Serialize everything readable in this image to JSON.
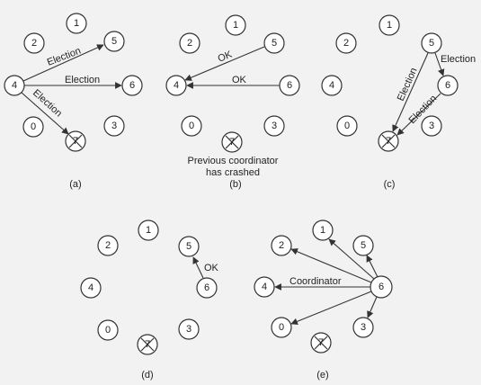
{
  "colors": {
    "background": "#f2f2f2",
    "node_fill": "#ffffff",
    "stroke": "#333333",
    "text": "#222222"
  },
  "figure": {
    "panels": [
      {
        "id": "a",
        "caption": "(a)",
        "nodes": [
          "1",
          "2",
          "5",
          "4",
          "6",
          "0",
          "3",
          "7"
        ],
        "crashed": [
          "7"
        ],
        "edges": [
          {
            "from": "4",
            "to": "5",
            "label": "Election"
          },
          {
            "from": "4",
            "to": "6",
            "label": "Election"
          },
          {
            "from": "4",
            "to": "7",
            "label": "Election"
          }
        ]
      },
      {
        "id": "b",
        "caption": "(b)",
        "note_line1": "Previous coordinator",
        "note_line2": "has crashed",
        "nodes": [
          "1",
          "2",
          "5",
          "4",
          "6",
          "0",
          "3",
          "7"
        ],
        "crashed": [
          "7"
        ],
        "edges": [
          {
            "from": "5",
            "to": "4",
            "label": "OK"
          },
          {
            "from": "6",
            "to": "4",
            "label": "OK"
          }
        ]
      },
      {
        "id": "c",
        "caption": "(c)",
        "nodes": [
          "1",
          "2",
          "5",
          "4",
          "6",
          "0",
          "3",
          "7"
        ],
        "crashed": [
          "7"
        ],
        "edges": [
          {
            "from": "5",
            "to": "6",
            "label": "Election"
          },
          {
            "from": "5",
            "to": "7",
            "label": "Election"
          },
          {
            "from": "6",
            "to": "7",
            "label": "Election"
          }
        ]
      },
      {
        "id": "d",
        "caption": "(d)",
        "nodes": [
          "1",
          "2",
          "5",
          "4",
          "6",
          "0",
          "3",
          "7"
        ],
        "crashed": [
          "7"
        ],
        "edges": [
          {
            "from": "6",
            "to": "5",
            "label": "OK"
          }
        ]
      },
      {
        "id": "e",
        "caption": "(e)",
        "nodes": [
          "1",
          "2",
          "5",
          "4",
          "6",
          "0",
          "3",
          "7"
        ],
        "crashed": [
          "7"
        ],
        "edges": [
          {
            "from": "6",
            "to": "4",
            "label": "Coordinator"
          },
          {
            "from": "6",
            "to": "2"
          },
          {
            "from": "6",
            "to": "1"
          },
          {
            "from": "6",
            "to": "5"
          },
          {
            "from": "6",
            "to": "3"
          },
          {
            "from": "6",
            "to": "0"
          }
        ]
      }
    ]
  }
}
